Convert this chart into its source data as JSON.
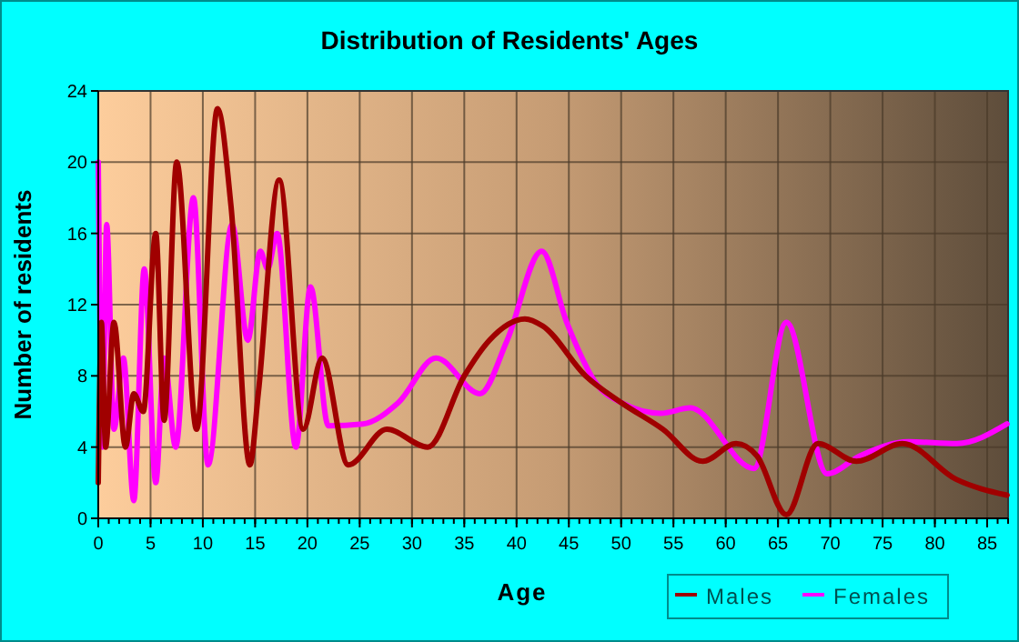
{
  "chart_data": {
    "type": "line",
    "title": "Distribution of Residents' Ages",
    "xlabel": "Age",
    "ylabel": "Number of residents",
    "xlim": [
      0,
      87
    ],
    "xticks": [
      0,
      5,
      10,
      15,
      20,
      25,
      30,
      35,
      40,
      45,
      50,
      55,
      60,
      65,
      70,
      75,
      80,
      85
    ],
    "ylim": [
      0,
      24
    ],
    "yticks": [
      0,
      4,
      8,
      12,
      16,
      20,
      24
    ],
    "grid": true,
    "legend": "bottom",
    "series": [
      {
        "name": "Males",
        "color": "#a00000",
        "x": [
          0,
          0.3,
          0.7,
          1.5,
          2.6,
          3.4,
          4.3,
          5.5,
          6.3,
          7.5,
          9.4,
          11.4,
          12.7,
          14.5,
          15.3,
          17.3,
          19.6,
          21.4,
          23.9,
          27.6,
          31.5,
          35,
          37.4,
          40.8,
          42.5,
          46.6,
          50,
          54,
          57.8,
          61,
          63,
          65.8,
          68.8,
          72.5,
          76.9,
          82,
          86.9
        ],
        "values": [
          2,
          11,
          4,
          11,
          4,
          7,
          6,
          16,
          5.5,
          20,
          5,
          23,
          17.5,
          3,
          7,
          19,
          5,
          9,
          3,
          5,
          4,
          8,
          10,
          11.2,
          10.8,
          8,
          6.5,
          5,
          3.2,
          4.2,
          3.5,
          0.2,
          4.2,
          3.2,
          4.2,
          2.2,
          1.3
        ]
      },
      {
        "name": "Females",
        "color": "#ff00ff",
        "x": [
          0,
          0.4,
          0.8,
          1.5,
          2.4,
          3.4,
          4.4,
          5.5,
          6.3,
          7.4,
          9.1,
          10.5,
          12.8,
          14.3,
          15.5,
          16.2,
          17.1,
          18.9,
          20.3,
          22,
          25.3,
          28.7,
          32.3,
          36.5,
          39.1,
          42.4,
          44.8,
          47.7,
          50,
          53.8,
          56.6,
          62.7,
          65.8,
          69.7,
          72.8,
          77.5,
          82.1,
          86.9
        ],
        "values": [
          20,
          4,
          16.5,
          5,
          9,
          1,
          14,
          2,
          9,
          4,
          18,
          3,
          16.5,
          10,
          15,
          14,
          16,
          4,
          13,
          5.2,
          5.3,
          6.5,
          9,
          7,
          10,
          15,
          11,
          7.5,
          6.5,
          5.9,
          6.2,
          2.8,
          11,
          2.5,
          3.5,
          4.3,
          4.2,
          5.3
        ]
      }
    ]
  }
}
